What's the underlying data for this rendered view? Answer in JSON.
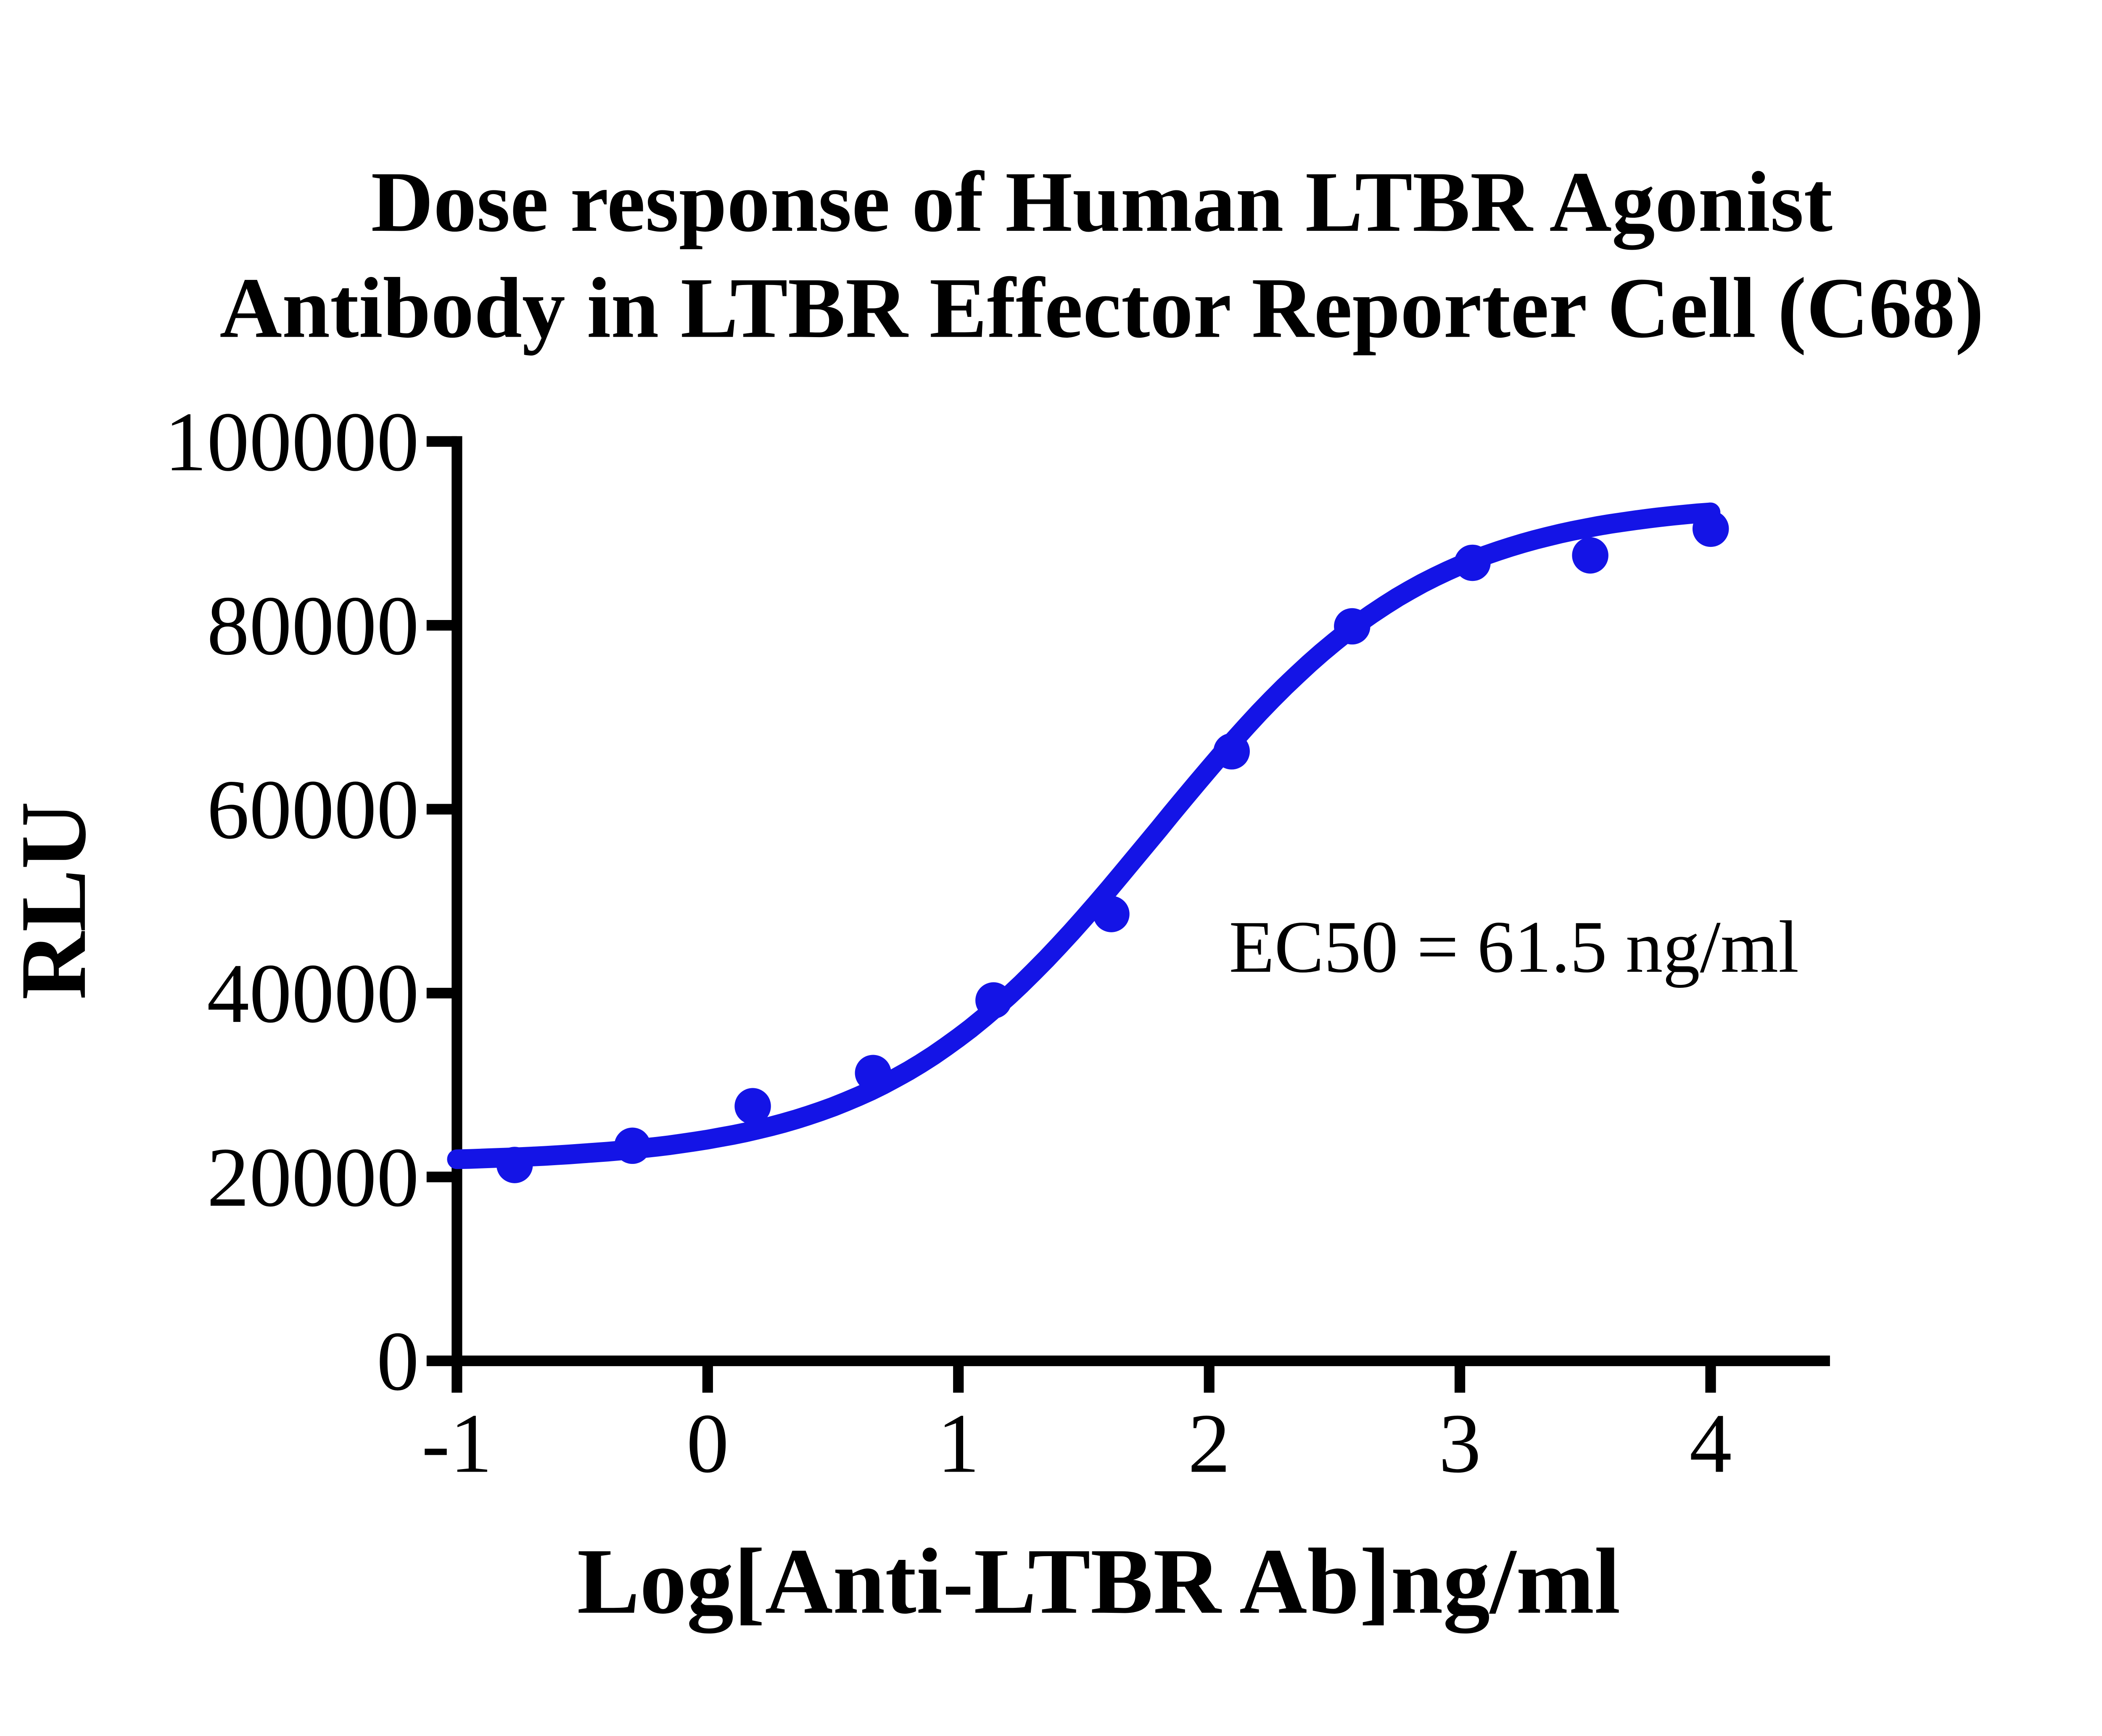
{
  "chart_data": {
    "type": "scatter",
    "title_line1": "Dose response of Human LTBR Agonist",
    "title_line2": "Antibody in LTBR Effector Reporter Cell (C68)",
    "xlabel": "Log[Anti-LTBR Ab]ng/ml",
    "ylabel": "RLU",
    "x_ticks": [
      -1,
      0,
      1,
      2,
      3,
      4
    ],
    "y_ticks": [
      0,
      20000,
      40000,
      60000,
      80000,
      100000
    ],
    "xlim": [
      -1,
      4.48
    ],
    "ylim": [
      0,
      100000
    ],
    "grid": false,
    "legend": false,
    "series": [
      {
        "name": "Human LTBR Agonist Antibody",
        "x": [
          -0.77,
          -0.3,
          0.18,
          0.66,
          1.14,
          1.61,
          2.09,
          2.57,
          3.05,
          3.52,
          4.0
        ],
        "y": [
          21300,
          23400,
          27700,
          31300,
          39200,
          48600,
          66300,
          79900,
          86800,
          87600,
          90500
        ]
      }
    ],
    "fit": {
      "model": "four_parameter_logistic",
      "bottom": 21500,
      "top": 93500,
      "log_ec50": 1.789,
      "hill": 0.8,
      "x_start": -1.0,
      "x_end": 4.0
    },
    "annotation": "EC50 = 61.5 ng/ml",
    "ec50_ng_ml": 61.5,
    "colors": {
      "curve": "#1414e6",
      "axis": "#000000",
      "text": "#000000",
      "background": "#ffffff"
    }
  }
}
